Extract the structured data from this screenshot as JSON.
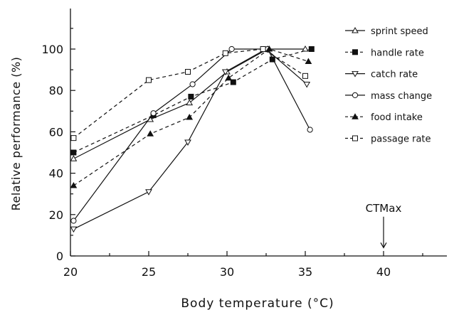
{
  "chart_data": {
    "type": "line",
    "xlabel": "Body temperature (°C)",
    "ylabel": "Relative performance (%)",
    "xlim": [
      20,
      45
    ],
    "ylim": [
      0,
      120
    ],
    "x_ticks": [
      20,
      25,
      30,
      35,
      40
    ],
    "y_ticks": [
      0,
      20,
      40,
      60,
      80,
      100
    ],
    "legend_position": "top-right",
    "series": [
      {
        "name": "sprint speed",
        "line": "solid",
        "marker": "triangle-up-open",
        "x": [
          20.2,
          25.1,
          27.6,
          30.0,
          32.6,
          35.0
        ],
        "y": [
          47,
          66,
          74,
          89,
          100,
          100
        ]
      },
      {
        "name": "handle rate",
        "line": "dashed",
        "marker": "square-filled",
        "x": [
          20.2,
          25.3,
          27.7,
          30.4,
          32.9,
          35.4
        ],
        "y": [
          50,
          68,
          77,
          84,
          95,
          100
        ]
      },
      {
        "name": "catch rate",
        "line": "solid",
        "marker": "triangle-down-open",
        "x": [
          20.2,
          25.0,
          27.5,
          29.9,
          32.5,
          35.1
        ],
        "y": [
          13,
          31,
          55,
          89,
          100,
          83
        ]
      },
      {
        "name": "mass change",
        "line": "solid",
        "marker": "circle-open",
        "x": [
          20.2,
          25.3,
          27.8,
          30.3,
          32.6,
          35.3
        ],
        "y": [
          17,
          69,
          83,
          100,
          100,
          61
        ]
      },
      {
        "name": "food intake",
        "line": "dashed",
        "marker": "triangle-up-filled",
        "x": [
          20.2,
          25.1,
          27.6,
          30.1,
          32.7,
          35.2
        ],
        "y": [
          34,
          59,
          67,
          86,
          100,
          94
        ]
      },
      {
        "name": "passage rate",
        "line": "dashed",
        "marker": "square-open",
        "x": [
          20.2,
          25.0,
          27.5,
          29.9,
          32.3,
          35.0
        ],
        "y": [
          57,
          85,
          89,
          98,
          100,
          87
        ]
      }
    ],
    "annotation": {
      "text": "CTMax",
      "x": 40,
      "arrow_from_y": 20,
      "arrow_to_y": 4
    }
  }
}
